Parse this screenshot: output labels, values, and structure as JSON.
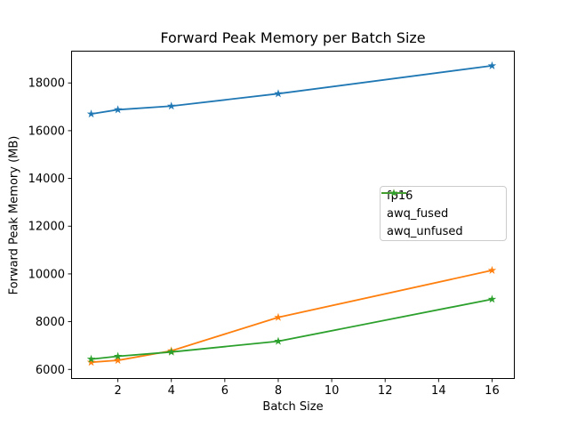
{
  "chart_data": {
    "type": "line",
    "title": "Forward Peak Memory per Batch Size",
    "xlabel": "Batch Size",
    "ylabel": "Forward Peak Memory (MB)",
    "x": [
      1,
      2,
      4,
      8,
      16
    ],
    "series": [
      {
        "name": "fp16",
        "color": "#1f77b4",
        "values": [
          16700,
          16880,
          17030,
          17550,
          18720
        ]
      },
      {
        "name": "awq_fused",
        "color": "#ff7f0e",
        "values": [
          6300,
          6380,
          6780,
          8180,
          10150
        ]
      },
      {
        "name": "awq_unfused",
        "color": "#2ca02c",
        "values": [
          6430,
          6550,
          6730,
          7180,
          8940
        ]
      }
    ],
    "marker": "star",
    "xticks": [
      2,
      4,
      6,
      8,
      10,
      12,
      14,
      16
    ],
    "yticks": [
      6000,
      8000,
      10000,
      12000,
      14000,
      16000,
      18000
    ],
    "xlim": [
      0.25,
      16.85
    ],
    "ylim": [
      5600,
      19350
    ],
    "grid": false,
    "legend": {
      "position": "center-right",
      "entries": [
        "fp16",
        "awq_fused",
        "awq_unfused"
      ]
    }
  },
  "colors": {
    "background": "#ffffff",
    "axis": "#000000",
    "legend_border": "#cccccc"
  }
}
